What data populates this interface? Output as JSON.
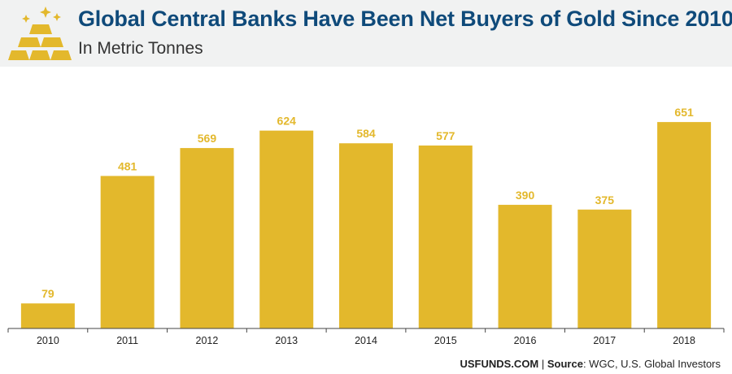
{
  "header": {
    "title": "Global Central Banks Have Been Net Buyers of Gold Since 2010",
    "subtitle": "In Metric Tonnes",
    "logo_icon": "gold-bars-icon"
  },
  "footer": {
    "brand": "USFUNDS.COM",
    "separator": " | ",
    "source_label": "Source",
    "source_text": ": WGC, U.S. Global Investors"
  },
  "colors": {
    "bar": "#e3b82c",
    "title": "#0f4a7a",
    "header_bg": "#f1f2f2"
  },
  "chart_data": {
    "type": "bar",
    "categories": [
      "2010",
      "2011",
      "2012",
      "2013",
      "2014",
      "2015",
      "2016",
      "2017",
      "2018"
    ],
    "values": [
      79,
      481,
      569,
      624,
      584,
      577,
      390,
      375,
      651
    ],
    "title": "Global Central Banks Have Been Net Buyers of Gold Since 2010",
    "subtitle": "In Metric Tonnes",
    "xlabel": "",
    "ylabel": "",
    "ylim": [
      0,
      700
    ],
    "grid": false,
    "data_labels": true
  }
}
